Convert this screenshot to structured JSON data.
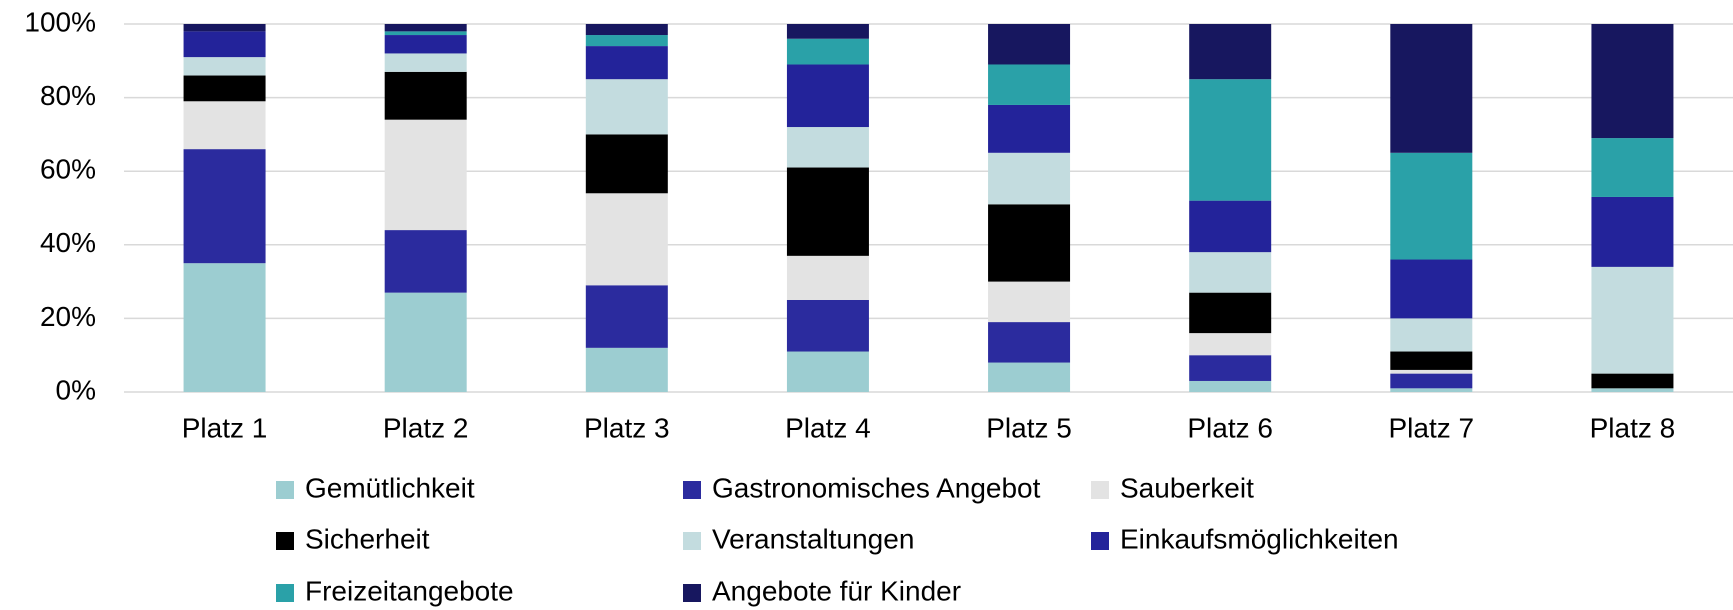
{
  "chart_data": {
    "type": "stacked_bar",
    "categories": [
      "Platz 1",
      "Platz 2",
      "Platz 3",
      "Platz 4",
      "Platz 5",
      "Platz 6",
      "Platz 7",
      "Platz 8"
    ],
    "series": [
      {
        "name": "Gemütlichkeit",
        "color": "#9ccdd1",
        "values": [
          35,
          27,
          12,
          11,
          8,
          3,
          1,
          1
        ]
      },
      {
        "name": "Gastronomisches Angebot",
        "color": "#2b2b9e",
        "values": [
          31,
          17,
          17,
          14,
          11,
          7,
          4,
          0
        ]
      },
      {
        "name": "Sauberkeit",
        "color": "#e3e3e3",
        "values": [
          13,
          30,
          25,
          12,
          11,
          6,
          1,
          0
        ]
      },
      {
        "name": "Sicherheit",
        "color": "#000000",
        "values": [
          7,
          13,
          16,
          24,
          21,
          11,
          5,
          4
        ]
      },
      {
        "name": "Veranstaltungen",
        "color": "#c3dcdf",
        "values": [
          5,
          5,
          15,
          11,
          14,
          11,
          9,
          29
        ]
      },
      {
        "name": "Einkaufsmöglichkeiten",
        "color": "#23239a",
        "values": [
          7,
          5,
          9,
          17,
          13,
          14,
          16,
          19
        ]
      },
      {
        "name": "Freizeitangebote",
        "color": "#2aa1a8",
        "values": [
          0,
          1,
          3,
          7,
          11,
          33,
          29,
          16
        ]
      },
      {
        "name": "Angebote für Kinder",
        "color": "#17175f",
        "values": [
          2,
          2,
          3,
          4,
          11,
          15,
          35,
          31
        ]
      }
    ],
    "ylim": [
      0,
      100
    ],
    "yticks": [
      {
        "value": 0,
        "label": "0%"
      },
      {
        "value": 20,
        "label": "20%"
      },
      {
        "value": 40,
        "label": "40%"
      },
      {
        "value": 60,
        "label": "60%"
      },
      {
        "value": 80,
        "label": "80%"
      },
      {
        "value": 100,
        "label": "100%"
      }
    ],
    "grid": true,
    "legend": "bottom"
  }
}
